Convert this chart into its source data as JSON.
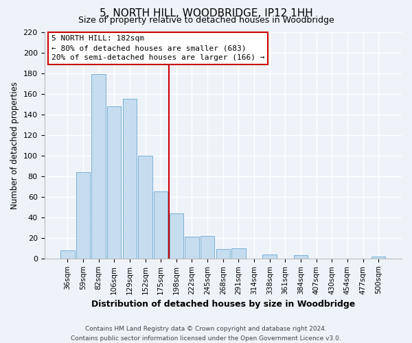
{
  "title": "5, NORTH HILL, WOODBRIDGE, IP12 1HH",
  "subtitle": "Size of property relative to detached houses in Woodbridge",
  "xlabel": "Distribution of detached houses by size in Woodbridge",
  "ylabel": "Number of detached properties",
  "bar_labels": [
    "36sqm",
    "59sqm",
    "82sqm",
    "106sqm",
    "129sqm",
    "152sqm",
    "175sqm",
    "198sqm",
    "222sqm",
    "245sqm",
    "268sqm",
    "291sqm",
    "314sqm",
    "338sqm",
    "361sqm",
    "384sqm",
    "407sqm",
    "430sqm",
    "454sqm",
    "477sqm",
    "500sqm"
  ],
  "bar_values": [
    8,
    84,
    179,
    148,
    155,
    100,
    65,
    44,
    21,
    22,
    9,
    10,
    0,
    4,
    0,
    3,
    0,
    0,
    0,
    0,
    2
  ],
  "bar_color": "#c6dcef",
  "bar_edge_color": "#7ab0d4",
  "vline_color": "#cc0000",
  "annotation_text_line1": "5 NORTH HILL: 182sqm",
  "annotation_text_line2": "← 80% of detached houses are smaller (683)",
  "annotation_text_line3": "20% of semi-detached houses are larger (166) →",
  "annotation_box_color": "#ffffff",
  "annotation_box_edge_color": "#cc0000",
  "ylim": [
    0,
    220
  ],
  "yticks": [
    0,
    20,
    40,
    60,
    80,
    100,
    120,
    140,
    160,
    180,
    200,
    220
  ],
  "footer_line1": "Contains HM Land Registry data © Crown copyright and database right 2024.",
  "footer_line2": "Contains public sector information licensed under the Open Government Licence v3.0.",
  "bg_color": "#eef3fa",
  "plot_bg_color": "#eef3fa",
  "grid_color": "#ffffff"
}
